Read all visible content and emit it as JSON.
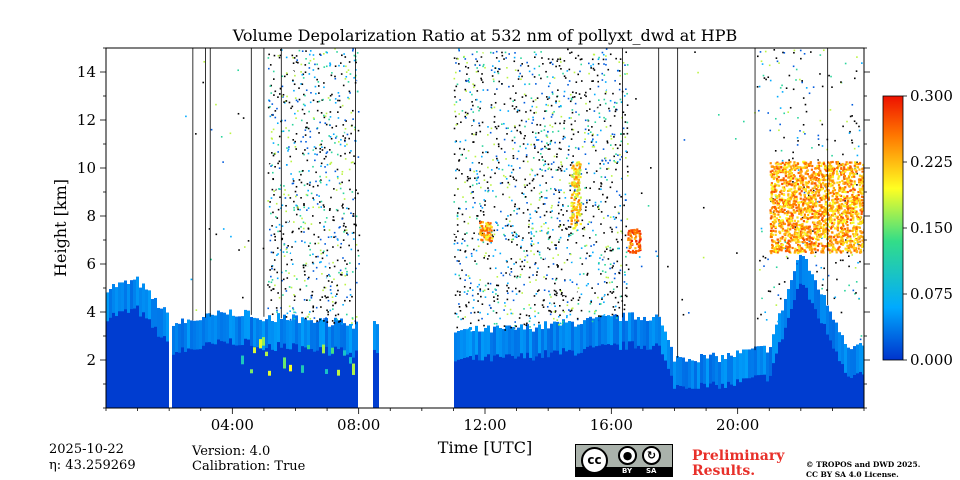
{
  "chart_data": {
    "type": "heatmap",
    "title": "Volume Depolarization Ratio at 532 nm of pollyxt_dwd at HPB",
    "xlabel": "Time [UTC]",
    "ylabel": "Height [km]",
    "xlim": [
      0,
      24
    ],
    "ylim": [
      0,
      15
    ],
    "x_ticks": [
      4,
      8,
      12,
      16,
      20
    ],
    "x_tick_labels": [
      "04:00",
      "08:00",
      "12:00",
      "16:00",
      "20:00"
    ],
    "y_ticks": [
      2,
      4,
      6,
      8,
      10,
      12,
      14
    ],
    "y_tick_labels": [
      "2",
      "4",
      "6",
      "8",
      "10",
      "12",
      "14"
    ],
    "colorbar": {
      "label": "",
      "range": [
        0.0,
        0.3
      ],
      "ticks": [
        0.0,
        0.075,
        0.15,
        0.225,
        0.3
      ],
      "tick_labels": [
        "0.000",
        "0.075",
        "0.150",
        "0.225",
        "0.300"
      ],
      "colormap": [
        "#0033cc",
        "#00aaff",
        "#33dd88",
        "#ffff22",
        "#ff7700",
        "#ee1100"
      ]
    },
    "data_gaps_hours": [
      [
        2.0,
        2.1
      ],
      [
        8.0,
        8.5
      ],
      [
        8.6,
        11.0
      ]
    ],
    "boundary_layer_top_km": [
      [
        0.0,
        5.0
      ],
      [
        1.0,
        5.3
      ],
      [
        2.2,
        3.5
      ],
      [
        4.0,
        4.0
      ],
      [
        5.0,
        3.8
      ],
      [
        7.8,
        3.5
      ],
      [
        11.0,
        3.2
      ],
      [
        13.0,
        3.3
      ],
      [
        16.5,
        3.8
      ],
      [
        17.5,
        3.8
      ],
      [
        18.0,
        2.1
      ],
      [
        19.5,
        2.1
      ],
      [
        20.5,
        2.4
      ],
      [
        21.0,
        2.5
      ],
      [
        22.0,
        6.5
      ],
      [
        23.5,
        2.6
      ],
      [
        24.0,
        2.6
      ]
    ],
    "features": [
      {
        "time_hours": [
          14.7,
          15.0
        ],
        "height_km": [
          7.5,
          10.3
        ],
        "depol": 0.2
      },
      {
        "time_hours": [
          16.5,
          16.9
        ],
        "height_km": [
          6.5,
          7.5
        ],
        "depol": 0.25
      },
      {
        "time_hours": [
          21.0,
          24.0
        ],
        "height_km": [
          6.5,
          10.3
        ],
        "depol": 0.22
      },
      {
        "time_hours": [
          11.8,
          12.2
        ],
        "height_km": [
          7.0,
          7.8
        ],
        "depol": 0.22
      }
    ]
  },
  "footer": {
    "date": "2025-10-22",
    "eta": "η: 43.259269",
    "version": "Version: 4.0",
    "calibration": "Calibration: True",
    "preliminary": [
      "Preliminary",
      "Results."
    ],
    "copyright": [
      "© TROPOS and DWD 2025.",
      "CC BY SA 4.0 License."
    ],
    "license_badge": {
      "cc": "cc",
      "by": "BY",
      "sa": "SA"
    }
  }
}
